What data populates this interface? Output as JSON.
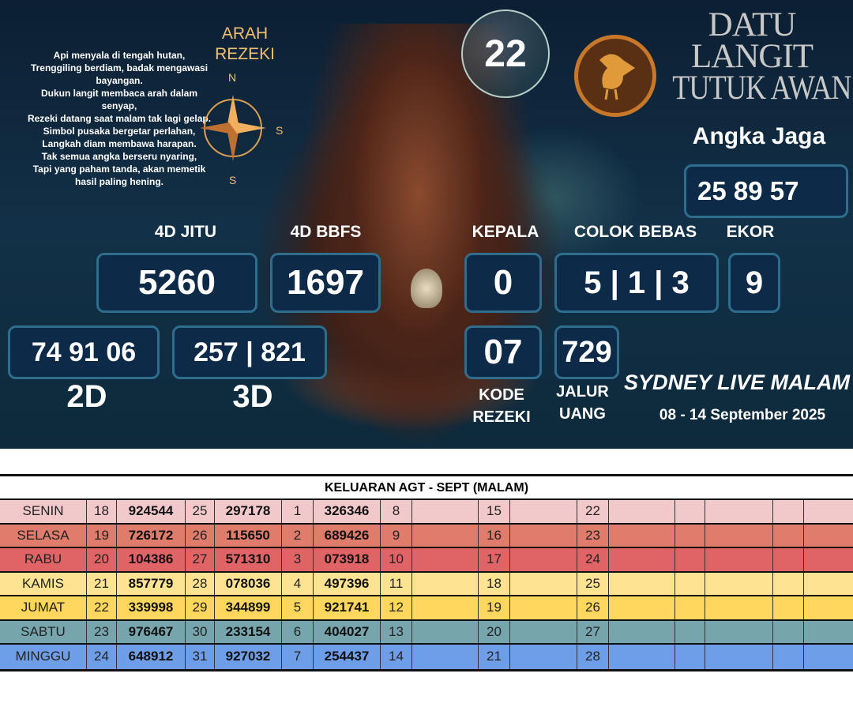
{
  "poster": {
    "poem": [
      "Api menyala di tengah hutan,",
      "Trenggiling berdiam, badak mengawasi bayangan.",
      "Dukun langit membaca arah dalam senyap,",
      "Rezeki datang saat malam tak lagi gelap.",
      "Simbol pusaka bergetar perlahan,",
      "Langkah diam membawa harapan.",
      "Tak semua angka berseru nyaring,",
      "Tapi yang paham tanda, akan memetik hasil paling hening."
    ],
    "compass": {
      "title_line1": "ARAH",
      "title_line2": "REZEKI",
      "n": "N",
      "s_right": "S",
      "s_bottom": "S"
    },
    "bubble_number": "22",
    "brand": {
      "line1": "DATU",
      "line2": "LANGIT",
      "line3": "TUTUK AWAN"
    },
    "angka_jaga": {
      "label": "Angka Jaga",
      "value": "25 89 57"
    },
    "four_d_jitu": {
      "label": "4D JITU",
      "value": "5260"
    },
    "four_d_bbfs": {
      "label": "4D BBFS",
      "value": "1697"
    },
    "kepala": {
      "label": "KEPALA",
      "value": "0"
    },
    "colok_bebas": {
      "label": "COLOK BEBAS",
      "value": "5 | 1 | 3"
    },
    "ekor": {
      "label": "EKOR",
      "value": "9"
    },
    "two_d": {
      "label": "2D",
      "value": "74 91 06"
    },
    "three_d": {
      "label": "3D",
      "value": "257 | 821"
    },
    "kode_rezeki": {
      "label1": "KODE",
      "label2": "REZEKI",
      "value": "07"
    },
    "jalur_uang": {
      "label1": "JALUR",
      "label2": "UANG",
      "value": "729"
    },
    "market": "SYDNEY LIVE MALAM",
    "date_range": "08 - 14 September 2025",
    "colors": {
      "box_bg": "#0d2a48",
      "box_border": "#2f6d8c",
      "coin": "#c9782a"
    }
  },
  "table": {
    "title": "KELUARAN AGT - SEPT (MALAM)",
    "rows": [
      {
        "day": "SENIN",
        "color": "#f2c9cb",
        "cells": [
          "18",
          "924544",
          "25",
          "297178",
          "1",
          "326346",
          "8",
          "",
          "15",
          "",
          "22",
          "",
          "",
          "",
          "",
          ""
        ]
      },
      {
        "day": "SELASA",
        "color": "#df7c6c",
        "cells": [
          "19",
          "726172",
          "26",
          "115650",
          "2",
          "689426",
          "9",
          "",
          "16",
          "",
          "23",
          "",
          "",
          "",
          "",
          ""
        ]
      },
      {
        "day": "RABU",
        "color": "#e06366",
        "cells": [
          "20",
          "104386",
          "27",
          "571310",
          "3",
          "073918",
          "10",
          "",
          "17",
          "",
          "24",
          "",
          "",
          "",
          "",
          ""
        ]
      },
      {
        "day": "KAMIS",
        "color": "#fee393",
        "cells": [
          "21",
          "857779",
          "28",
          "078036",
          "4",
          "497396",
          "11",
          "",
          "18",
          "",
          "25",
          "",
          "",
          "",
          "",
          ""
        ]
      },
      {
        "day": "JUMAT",
        "color": "#fed75c",
        "cells": [
          "22",
          "339998",
          "29",
          "344899",
          "5",
          "921741",
          "12",
          "",
          "19",
          "",
          "26",
          "",
          "",
          "",
          "",
          ""
        ]
      },
      {
        "day": "SABTU",
        "color": "#77a5ae",
        "cells": [
          "23",
          "976467",
          "30",
          "233154",
          "6",
          "404027",
          "13",
          "",
          "20",
          "",
          "27",
          "",
          "",
          "",
          "",
          ""
        ]
      },
      {
        "day": "MINGGU",
        "color": "#6f9ee8",
        "cells": [
          "24",
          "648912",
          "31",
          "927032",
          "7",
          "254437",
          "14",
          "",
          "21",
          "",
          "28",
          "",
          "",
          "",
          "",
          ""
        ]
      }
    ]
  }
}
